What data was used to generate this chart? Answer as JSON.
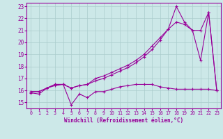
{
  "xlabel": "Windchill (Refroidissement éolien,°C)",
  "background_color": "#cce8e8",
  "grid_color": "#aacccc",
  "line_color": "#990099",
  "xlim": [
    -0.5,
    23.5
  ],
  "ylim": [
    14.5,
    23.3
  ],
  "yticks": [
    15,
    16,
    17,
    18,
    19,
    20,
    21,
    22,
    23
  ],
  "xticks": [
    0,
    1,
    2,
    3,
    4,
    5,
    6,
    7,
    8,
    9,
    10,
    11,
    12,
    13,
    14,
    15,
    16,
    17,
    18,
    19,
    20,
    21,
    22,
    23
  ],
  "line1_x": [
    0,
    1,
    2,
    3,
    4,
    5,
    6,
    7,
    8,
    9,
    10,
    11,
    12,
    13,
    14,
    15,
    16,
    17,
    18,
    19,
    20,
    21,
    22,
    23
  ],
  "line1_y": [
    15.8,
    15.7,
    16.2,
    16.4,
    16.5,
    14.8,
    15.7,
    15.4,
    15.9,
    15.9,
    16.1,
    16.3,
    16.4,
    16.5,
    16.5,
    16.5,
    16.3,
    16.2,
    16.1,
    16.1,
    16.1,
    16.1,
    16.1,
    16.0
  ],
  "line2_x": [
    0,
    1,
    2,
    3,
    4,
    5,
    6,
    7,
    8,
    9,
    10,
    11,
    12,
    13,
    14,
    15,
    16,
    17,
    18,
    19,
    20,
    21,
    22,
    23
  ],
  "line2_y": [
    15.9,
    15.9,
    16.2,
    16.5,
    16.5,
    16.2,
    16.4,
    16.5,
    17.0,
    17.2,
    17.5,
    17.8,
    18.1,
    18.5,
    19.0,
    19.7,
    20.4,
    21.1,
    21.7,
    21.5,
    21.0,
    21.0,
    22.5,
    16.0
  ],
  "line3_x": [
    0,
    1,
    2,
    3,
    4,
    5,
    6,
    7,
    8,
    9,
    10,
    11,
    12,
    13,
    14,
    15,
    16,
    17,
    18,
    19,
    20,
    21,
    22,
    23
  ],
  "line3_y": [
    15.9,
    15.9,
    16.2,
    16.5,
    16.5,
    16.2,
    16.4,
    16.5,
    16.8,
    17.0,
    17.3,
    17.6,
    17.9,
    18.3,
    18.8,
    19.4,
    20.2,
    21.1,
    23.0,
    21.7,
    21.0,
    18.5,
    22.5,
    16.0
  ]
}
